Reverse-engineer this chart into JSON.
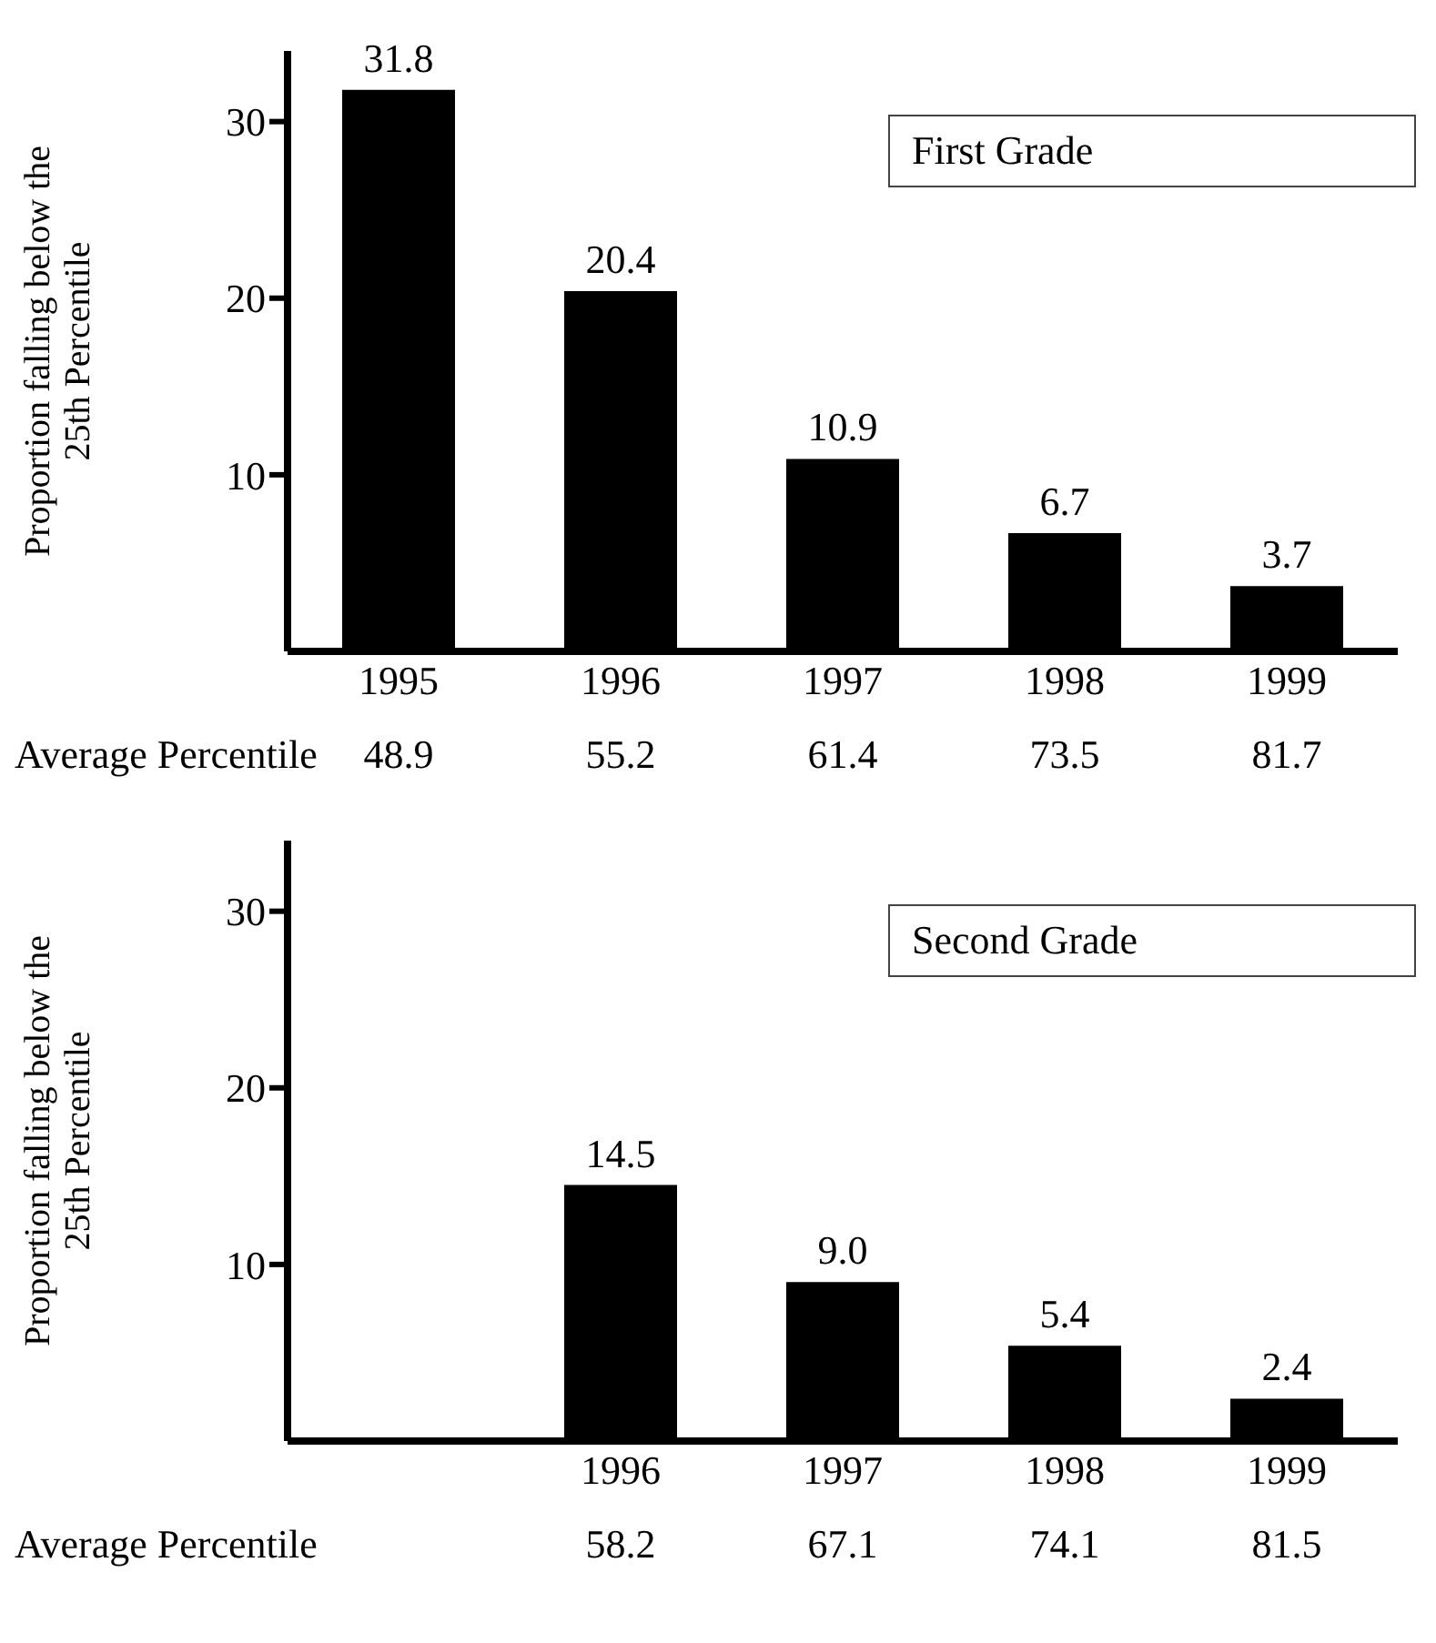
{
  "chart_data": [
    {
      "type": "bar",
      "title": "First Grade",
      "ylabel": "Proportion falling below the\n25th Percentile",
      "categories": [
        "1995",
        "1996",
        "1997",
        "1998",
        "1999"
      ],
      "values": [
        31.8,
        20.4,
        10.9,
        6.7,
        3.7
      ],
      "color": "#000000",
      "ylim": [
        0,
        34
      ],
      "yticks": [
        10,
        20,
        30
      ],
      "grid": false,
      "legend": false,
      "data_labels": true,
      "annotations": [
        "Average Percentile",
        "48.9",
        "55.2",
        "61.4",
        "73.5",
        "81.7"
      ]
    },
    {
      "type": "bar",
      "title": "Second Grade",
      "ylabel": "Proportion falling below the\n25th Percentile",
      "categories": [
        null,
        "1996",
        "1997",
        "1998",
        "1999"
      ],
      "values": [
        null,
        14.5,
        9.0,
        5.4,
        2.4
      ],
      "color": "#000000",
      "ylim": [
        0,
        34
      ],
      "yticks": [
        10,
        20,
        30
      ],
      "grid": false,
      "legend": false,
      "value_labels": [
        null,
        "14.5",
        "9.0",
        "5.4",
        "2.4"
      ],
      "annotations": [
        "Average Percentile",
        "58.2",
        "67.1",
        "74.1",
        "81.5"
      ]
    }
  ]
}
